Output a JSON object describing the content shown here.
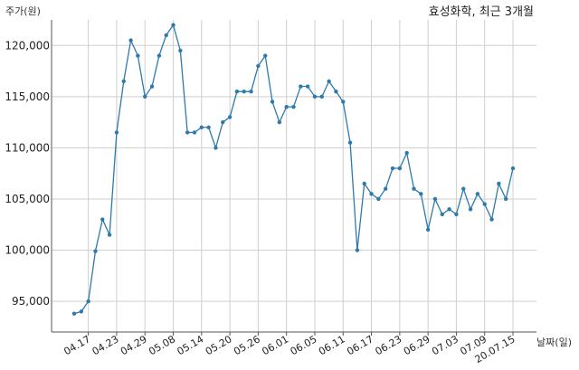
{
  "chart_data": {
    "type": "line",
    "title": "효성화학, 최근 3개월",
    "ylabel": "주가(원)",
    "xlabel": "날짜(일)",
    "ylim": [
      92000,
      122500
    ],
    "yticks": [
      95000,
      100000,
      105000,
      110000,
      115000,
      120000
    ],
    "ytick_labels": [
      "95,000",
      "100,000",
      "105,000",
      "110,000",
      "115,000",
      "120,000"
    ],
    "xtick_labels": [
      "04.17",
      "04.23",
      "04.29",
      "05.08",
      "05.14",
      "05.20",
      "05.26",
      "06.01",
      "06.05",
      "06.11",
      "06.17",
      "06.23",
      "06.29",
      "07.03",
      "07.09",
      "20.07.15"
    ],
    "xtick_index": [
      2,
      6,
      10,
      14,
      18,
      22,
      26,
      30,
      34,
      38,
      42,
      46,
      50,
      54,
      58,
      62
    ],
    "grid": true,
    "line_color": "#2e7aad",
    "series": [
      {
        "values": [
          93800,
          94000,
          95000,
          99900,
          103000,
          101500,
          111500,
          116500,
          120500,
          119000,
          115000,
          116000,
          119000,
          121000,
          122000,
          119500,
          111500,
          111500,
          112000,
          112000,
          110000,
          112500,
          113000,
          115500,
          115500,
          115500,
          118000,
          119000,
          114500,
          112500,
          114000,
          114000,
          116000,
          116000,
          115000,
          115000,
          116500,
          115500,
          114500,
          110500,
          100000,
          106500,
          105500,
          105000,
          106000,
          108000,
          108000,
          109500,
          106000,
          105500,
          102000,
          105000,
          103500,
          104000,
          103500,
          106000,
          104000,
          105500,
          104500,
          103000,
          106500,
          105000,
          108000
        ]
      }
    ]
  }
}
